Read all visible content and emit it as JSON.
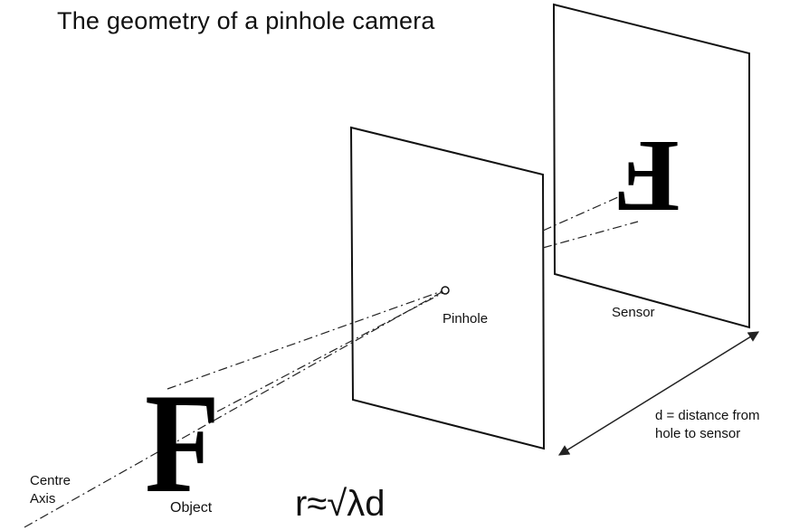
{
  "title": "The geometry of a pinhole camera",
  "labels": {
    "pinhole": "Pinhole",
    "sensor": "Sensor",
    "distance_line1": "d = distance from",
    "distance_line2": "hole to sensor",
    "axis_line1": "Centre",
    "axis_line2": "Axis",
    "object": "Object"
  },
  "formula": "r≈√λd",
  "glyphs": {
    "object": "F",
    "image": "F"
  },
  "colors": {
    "ink": "#000000",
    "background": "#ffffff"
  }
}
